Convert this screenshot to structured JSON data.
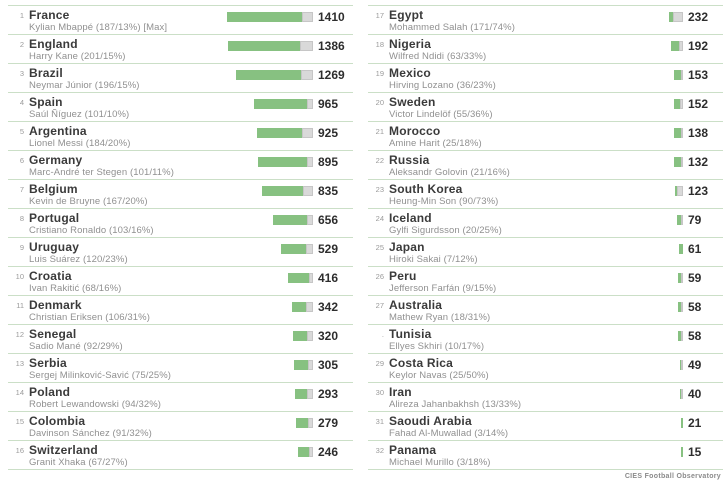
{
  "colors": {
    "bar_green": "#87c181",
    "bar_player_share_gray": "#d9d9d9",
    "separator_green": "#cbdfc7"
  },
  "footer": {
    "credit": "CIES Football Observatory"
  },
  "chart_data": {
    "type": "bar",
    "max_value": 1410,
    "bar_note": "bar length = value; gray tail = top player share %",
    "entries": [
      {
        "rank": "1",
        "country": "France",
        "player": "Kylian Mbappé (187/13%) [Max]",
        "value": 1410,
        "pct": 13
      },
      {
        "rank": "2",
        "country": "England",
        "player": "Harry Kane (201/15%)",
        "value": 1386,
        "pct": 15
      },
      {
        "rank": "3",
        "country": "Brazil",
        "player": "Neymar Júnior (196/15%)",
        "value": 1269,
        "pct": 15
      },
      {
        "rank": "4",
        "country": "Spain",
        "player": "Saúl Ñíguez (101/10%)",
        "value": 965,
        "pct": 10
      },
      {
        "rank": "5",
        "country": "Argentina",
        "player": "Lionel Messi (184/20%)",
        "value": 925,
        "pct": 20
      },
      {
        "rank": "6",
        "country": "Germany",
        "player": "Marc-André ter Stegen (101/11%)",
        "value": 895,
        "pct": 11
      },
      {
        "rank": "7",
        "country": "Belgium",
        "player": "Kevin de Bruyne (167/20%)",
        "value": 835,
        "pct": 20
      },
      {
        "rank": "8",
        "country": "Portugal",
        "player": "Cristiano Ronaldo (103/16%)",
        "value": 656,
        "pct": 16
      },
      {
        "rank": "9",
        "country": "Uruguay",
        "player": "Luis Suárez (120/23%)",
        "value": 529,
        "pct": 23
      },
      {
        "rank": "10",
        "country": "Croatia",
        "player": "Ivan Rakitić (68/16%)",
        "value": 416,
        "pct": 16
      },
      {
        "rank": "11",
        "country": "Denmark",
        "player": "Christian Eriksen (106/31%)",
        "value": 342,
        "pct": 31
      },
      {
        "rank": "12",
        "country": "Senegal",
        "player": "Sadio Mané (92/29%)",
        "value": 320,
        "pct": 29
      },
      {
        "rank": "13",
        "country": "Serbia",
        "player": "Sergej Milinković-Savić (75/25%)",
        "value": 305,
        "pct": 25
      },
      {
        "rank": "14",
        "country": "Poland",
        "player": "Robert Lewandowski (94/32%)",
        "value": 293,
        "pct": 32
      },
      {
        "rank": "15",
        "country": "Colombia",
        "player": "Davinson Sánchez (91/32%)",
        "value": 279,
        "pct": 32
      },
      {
        "rank": "16",
        "country": "Switzerland",
        "player": "Granit Xhaka (67/27%)",
        "value": 246,
        "pct": 27
      },
      {
        "rank": "17",
        "country": "Egypt",
        "player": "Mohammed Salah (171/74%)",
        "value": 232,
        "pct": 74
      },
      {
        "rank": "18",
        "country": "Nigeria",
        "player": "Wilfred Ndidi (63/33%)",
        "value": 192,
        "pct": 33
      },
      {
        "rank": "19",
        "country": "Mexico",
        "player": "Hirving Lozano (36/23%)",
        "value": 153,
        "pct": 23
      },
      {
        "rank": "20",
        "country": "Sweden",
        "player": "Victor Lindelöf (55/36%)",
        "value": 152,
        "pct": 36
      },
      {
        "rank": "21",
        "country": "Morocco",
        "player": "Amine Harit (25/18%)",
        "value": 138,
        "pct": 18
      },
      {
        "rank": "22",
        "country": "Russia",
        "player": "Aleksandr Golovin (21/16%)",
        "value": 132,
        "pct": 16
      },
      {
        "rank": "23",
        "country": "South Korea",
        "player": "Heung-Min Son (90/73%)",
        "value": 123,
        "pct": 73
      },
      {
        "rank": "24",
        "country": "Iceland",
        "player": "Gylfi Sigurdsson (20/25%)",
        "value": 79,
        "pct": 25
      },
      {
        "rank": "25",
        "country": "Japan",
        "player": "Hiroki Sakai (7/12%)",
        "value": 61,
        "pct": 12
      },
      {
        "rank": "26",
        "country": "Peru",
        "player": "Jefferson Farfán (9/15%)",
        "value": 59,
        "pct": 15
      },
      {
        "rank": "27",
        "country": "Australia",
        "player": "Mathew Ryan (18/31%)",
        "value": 58,
        "pct": 31
      },
      {
        "rank": ".",
        "country": "Tunisia",
        "player": "Ellyes Skhiri (10/17%)",
        "value": 58,
        "pct": 17
      },
      {
        "rank": "29",
        "country": "Costa Rica",
        "player": "Keylor Navas (25/50%)",
        "value": 49,
        "pct": 50
      },
      {
        "rank": "30",
        "country": "Iran",
        "player": "Alireza Jahanbakhsh (13/33%)",
        "value": 40,
        "pct": 33
      },
      {
        "rank": "31",
        "country": "Saoudi Arabia",
        "player": "Fahad Al-Muwallad (3/14%)",
        "value": 21,
        "pct": 14
      },
      {
        "rank": "32",
        "country": "Panama",
        "player": "Michael Murillo (3/18%)",
        "value": 15,
        "pct": 18
      }
    ]
  }
}
